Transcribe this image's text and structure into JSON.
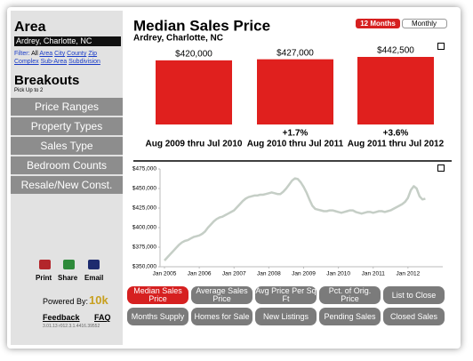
{
  "sidebar": {
    "title": "Area",
    "search_value": "Ardrey, Charlotte, NC",
    "filter_label": "Filter:",
    "filters": [
      "All",
      "Area",
      "City",
      "County",
      "Zip",
      "Complex",
      "Sub-Area",
      "Subdivision"
    ],
    "breakouts_title": "Breakouts",
    "breakouts_hint": "Pick Up to 2",
    "breakouts": [
      "Price Ranges",
      "Property Types",
      "Sales Type",
      "Bedroom Counts",
      "Resale/New Const."
    ],
    "actions": [
      "Print",
      "Share",
      "Email"
    ],
    "powered_by": "Powered By:",
    "brand": "10k",
    "links": [
      "Feedback",
      "FAQ"
    ],
    "version": "3.01.13 r012.3.1.4416.39552"
  },
  "header": {
    "title": "Median Sales Price",
    "subtitle": "Ardrey, Charlotte, NC",
    "toggles": [
      "12 Months",
      "Monthly"
    ]
  },
  "bar_chart": {
    "type": "bar",
    "categories": [
      "Aug 2009 thru Jul 2010",
      "Aug 2010 thru Jul 2011",
      "Aug 2011 thru Jul 2012"
    ],
    "values": [
      420000,
      427000,
      442500
    ],
    "value_labels": [
      "$420,000",
      "$427,000",
      "$442,500"
    ],
    "changes": [
      null,
      "+1.7%",
      "+3.6%"
    ],
    "color": "#e0201e"
  },
  "line_chart": {
    "type": "line",
    "color": "#c5cec6",
    "x": [
      "Jan 2005",
      "Feb 2005",
      "Mar 2005",
      "Apr 2005",
      "May 2005",
      "Jun 2005",
      "Jul 2005",
      "Aug 2005",
      "Sep 2005",
      "Oct 2005",
      "Nov 2005",
      "Dec 2005",
      "Jan 2006",
      "Feb 2006",
      "Mar 2006",
      "Apr 2006",
      "May 2006",
      "Jun 2006",
      "Jul 2006",
      "Aug 2006",
      "Sep 2006",
      "Oct 2006",
      "Nov 2006",
      "Dec 2006",
      "Jan 2007",
      "Feb 2007",
      "Mar 2007",
      "Apr 2007",
      "May 2007",
      "Jun 2007",
      "Jul 2007",
      "Aug 2007",
      "Sep 2007",
      "Oct 2007",
      "Nov 2007",
      "Dec 2007",
      "Jan 2008",
      "Feb 2008",
      "Mar 2008",
      "Apr 2008",
      "May 2008",
      "Jun 2008",
      "Jul 2008",
      "Aug 2008",
      "Sep 2008",
      "Oct 2008",
      "Nov 2008",
      "Dec 2008",
      "Jan 2009",
      "Feb 2009",
      "Mar 2009",
      "Apr 2009",
      "May 2009",
      "Jun 2009",
      "Jul 2009",
      "Aug 2009",
      "Sep 2009",
      "Oct 2009",
      "Nov 2009",
      "Dec 2009",
      "Jan 2010",
      "Feb 2010",
      "Mar 2010",
      "Apr 2010",
      "May 2010",
      "Jun 2010",
      "Jul 2010",
      "Aug 2010",
      "Sep 2010",
      "Oct 2010",
      "Nov 2010",
      "Dec 2010",
      "Jan 2011",
      "Feb 2011",
      "Mar 2011",
      "Apr 2011",
      "May 2011",
      "Jun 2011",
      "Jul 2011",
      "Aug 2011",
      "Sep 2011",
      "Oct 2011",
      "Nov 2011",
      "Dec 2011",
      "Jan 2012",
      "Feb 2012",
      "Mar 2012",
      "Apr 2012",
      "May 2012",
      "Jun 2012",
      "Jul 2012"
    ],
    "values": [
      358000,
      362000,
      366000,
      370000,
      374000,
      378000,
      381000,
      383000,
      384000,
      386000,
      388000,
      389000,
      390000,
      392000,
      395000,
      400000,
      404000,
      408000,
      411000,
      413000,
      414000,
      416000,
      418000,
      420000,
      422000,
      426000,
      430000,
      434000,
      437000,
      439000,
      440000,
      441000,
      441000,
      442000,
      442000,
      443000,
      444000,
      445000,
      444000,
      443000,
      443000,
      446000,
      450000,
      455000,
      460000,
      463000,
      462000,
      458000,
      452000,
      445000,
      436000,
      428000,
      424000,
      423000,
      422000,
      421000,
      421000,
      422000,
      422000,
      421000,
      420000,
      419000,
      420000,
      421000,
      422000,
      422000,
      420000,
      419000,
      418000,
      419000,
      420000,
      420000,
      419000,
      420000,
      421000,
      421000,
      420000,
      421000,
      422000,
      424000,
      426000,
      428000,
      430000,
      433000,
      438000,
      448000,
      453000,
      450000,
      440000,
      436000,
      437000
    ],
    "ylim": [
      350000,
      475000
    ],
    "yticks": [
      {
        "value": 350000,
        "label": "$350,000"
      },
      {
        "value": 375000,
        "label": "$375,000"
      },
      {
        "value": 400000,
        "label": "$400,000"
      },
      {
        "value": 425000,
        "label": "$425,000"
      },
      {
        "value": 450000,
        "label": "$450,000"
      },
      {
        "value": 475000,
        "label": "$475,000"
      }
    ]
  },
  "metrics": [
    "Median Sales Price",
    "Average Sales Price",
    "Avg Price Per Sq Ft",
    "Pct. of Orig. Price",
    "List to Close",
    "Months Supply",
    "Homes for Sale",
    "New Listings",
    "Pending Sales",
    "Closed Sales"
  ]
}
